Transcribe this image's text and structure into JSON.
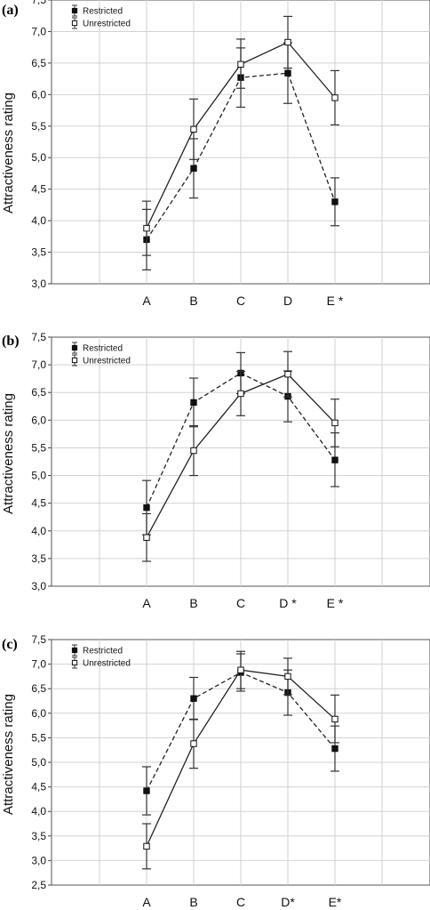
{
  "figure": {
    "panels": [
      {
        "label": "(a)"
      },
      {
        "label": "(b)"
      },
      {
        "label": "(c)"
      }
    ]
  },
  "chart_data": [
    {
      "type": "line",
      "panel_label": "(a)",
      "ylabel": "Attractiveness rating",
      "ylim": [
        3.0,
        7.5
      ],
      "yticks": [
        "3,0",
        "3,5",
        "4,0",
        "4,5",
        "5,0",
        "5,5",
        "6,0",
        "6,5",
        "7,0",
        "7,5"
      ],
      "categories": [
        "A",
        "B",
        "C",
        "D",
        "E *"
      ],
      "grid": true,
      "legend_position": "top-left",
      "series": [
        {
          "name": "Restricted",
          "marker": "filled-square",
          "line": "dashed",
          "values": [
            3.7,
            4.83,
            6.27,
            6.34,
            4.3
          ],
          "error": [
            [
              3.22,
              4.18
            ],
            [
              4.36,
              5.3
            ],
            [
              5.8,
              6.74
            ],
            [
              5.86,
              6.82
            ],
            [
              3.92,
              4.68
            ]
          ]
        },
        {
          "name": "Unrestricted",
          "marker": "open-square",
          "line": "solid",
          "values": [
            3.88,
            5.45,
            6.48,
            6.83,
            5.95
          ],
          "error": [
            [
              3.45,
              4.31
            ],
            [
              4.97,
              5.93
            ],
            [
              6.1,
              6.88
            ],
            [
              6.42,
              7.24
            ],
            [
              5.52,
              6.38
            ]
          ]
        }
      ]
    },
    {
      "type": "line",
      "panel_label": "(b)",
      "ylabel": "Attractiveness rating",
      "ylim": [
        3.0,
        7.5
      ],
      "yticks": [
        "3,0",
        "3,5",
        "4,0",
        "4,5",
        "5,0",
        "5,5",
        "6,0",
        "6,5",
        "7,0",
        "7,5"
      ],
      "categories": [
        "A",
        "B",
        "C",
        "D *",
        "E *"
      ],
      "grid": true,
      "legend_position": "top-left",
      "series": [
        {
          "name": "Restricted",
          "marker": "filled-square",
          "line": "dashed",
          "values": [
            4.42,
            6.32,
            6.85,
            6.43,
            5.28
          ],
          "error": [
            [
              3.93,
              4.91
            ],
            [
              5.88,
              6.76
            ],
            [
              6.48,
              7.22
            ],
            [
              5.97,
              6.89
            ],
            [
              4.8,
              5.77
            ]
          ]
        },
        {
          "name": "Unrestricted",
          "marker": "open-square",
          "line": "solid",
          "values": [
            3.88,
            5.45,
            6.48,
            6.83,
            5.95
          ],
          "error": [
            [
              3.45,
              4.31
            ],
            [
              5.0,
              5.9
            ],
            [
              6.08,
              6.88
            ],
            [
              6.42,
              7.24
            ],
            [
              5.52,
              6.38
            ]
          ]
        }
      ]
    },
    {
      "type": "line",
      "panel_label": "(c)",
      "ylabel": "Attractiveness rating",
      "ylim": [
        2.5,
        7.5
      ],
      "yticks": [
        "2,5",
        "3,0",
        "3,5",
        "4,0",
        "4,5",
        "5,0",
        "5,5",
        "6,0",
        "6,5",
        "7,0",
        "7,5"
      ],
      "categories": [
        "A",
        "B",
        "C",
        "D*",
        "E*"
      ],
      "grid": true,
      "legend_position": "top-left",
      "series": [
        {
          "name": "Restricted",
          "marker": "filled-square",
          "line": "dashed",
          "values": [
            4.42,
            6.3,
            6.83,
            6.42,
            5.28
          ],
          "error": [
            [
              3.93,
              4.91
            ],
            [
              5.87,
              6.73
            ],
            [
              6.45,
              7.21
            ],
            [
              5.96,
              6.88
            ],
            [
              4.82,
              5.74
            ]
          ]
        },
        {
          "name": "Unrestricted",
          "marker": "open-square",
          "line": "solid",
          "values": [
            3.29,
            5.38,
            6.88,
            6.75,
            5.88
          ],
          "error": [
            [
              2.83,
              3.75
            ],
            [
              4.88,
              5.88
            ],
            [
              6.5,
              7.26
            ],
            [
              6.38,
              7.12
            ],
            [
              5.4,
              6.37
            ]
          ]
        }
      ]
    }
  ]
}
